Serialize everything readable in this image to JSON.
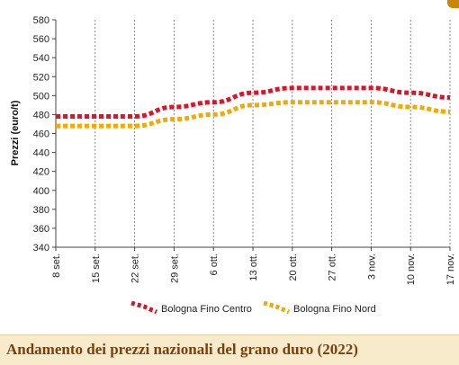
{
  "footer": {
    "title": "Andamento dei prezzi nazionali del grano duro (2022)"
  },
  "chart_data": {
    "type": "line",
    "title": "Andamento dei prezzi nazionali del grano duro (2022)",
    "xlabel": "",
    "ylabel": "Prezzi (euro/t)",
    "ylim": [
      340,
      580
    ],
    "yticks": [
      340,
      360,
      380,
      400,
      420,
      440,
      460,
      480,
      500,
      520,
      540,
      560,
      580
    ],
    "categories": [
      "8 set.",
      "15 set.",
      "22 set.",
      "29 set.",
      "6 ott.",
      "13 ott.",
      "20 ott.",
      "27 ott.",
      "3 nov.",
      "10 nov.",
      "17 nov."
    ],
    "grid": "vertical dashed",
    "legend_position": "bottom",
    "series": [
      {
        "name": "Bologna Fino Centro",
        "color": "#d8162a",
        "values": [
          478,
          478,
          478,
          488,
          493,
          503,
          508,
          508,
          508,
          503,
          498
        ]
      },
      {
        "name": "Bologna Fino Nord",
        "color": "#f2a900",
        "values": [
          468,
          468,
          468,
          475,
          480,
          490,
          493,
          493,
          493,
          488,
          483
        ]
      }
    ]
  }
}
